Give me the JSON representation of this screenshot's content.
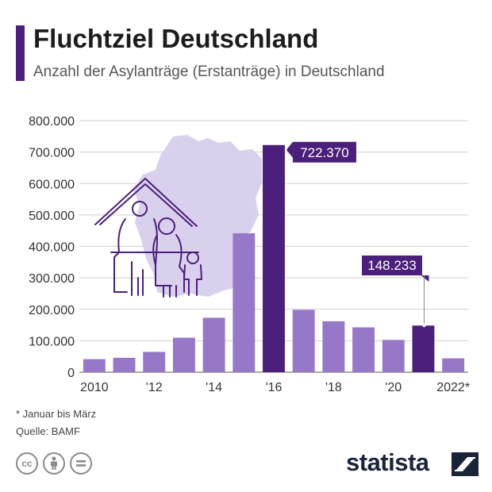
{
  "header": {
    "title": "Fluchtziel Deutschland",
    "subtitle": "Anzahl der Asylanträge (Erstanträge) in Deutschland"
  },
  "footer": {
    "footnote": "* Januar bis März",
    "source": "Quelle: BAMF",
    "brand": "statista",
    "license_icons": [
      "cc-icon",
      "attribution-icon",
      "no-derivatives-icon"
    ]
  },
  "colors": {
    "bar": "#9677c8",
    "bar_highlight": "#4b1f7a",
    "grid": "#cfcfcf",
    "map": "#d9d0ee",
    "illustration": "#4b1f7a"
  },
  "chart_data": {
    "type": "bar",
    "categories": [
      "2010",
      "2011",
      "2012",
      "2013",
      "2014",
      "2015",
      "2016",
      "2017",
      "2018",
      "2019",
      "2020",
      "2021",
      "2022*"
    ],
    "x_tick_labels": [
      "2010",
      "",
      "'12",
      "",
      "'14",
      "",
      "'16",
      "",
      "'18",
      "",
      "'20",
      "",
      "2022*"
    ],
    "values": [
      41332,
      45741,
      64539,
      109580,
      173072,
      441899,
      722370,
      198317,
      161931,
      142509,
      102581,
      148233,
      44000
    ],
    "highlight": [
      6,
      11
    ],
    "labels": [
      {
        "index": 6,
        "text": "722.370"
      },
      {
        "index": 11,
        "text": "148.233"
      }
    ],
    "y_ticks": [
      0,
      100000,
      200000,
      300000,
      400000,
      500000,
      600000,
      700000,
      800000
    ],
    "y_tick_labels": [
      "0",
      "100.000",
      "200.000",
      "300.000",
      "400.000",
      "500.000",
      "600.000",
      "700.000",
      "800.000"
    ],
    "ylim": [
      0,
      800000
    ],
    "grid": true,
    "legend": "none"
  }
}
